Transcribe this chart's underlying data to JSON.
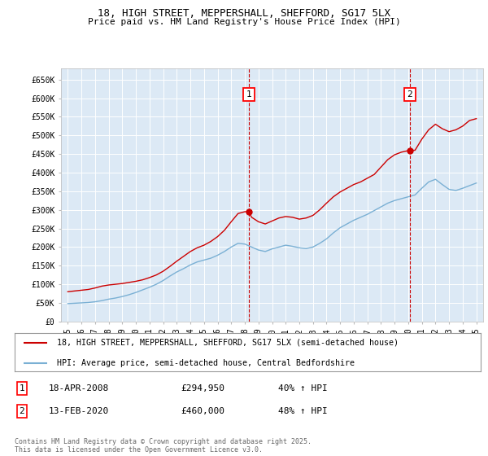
{
  "title_line1": "18, HIGH STREET, MEPPERSHALL, SHEFFORD, SG17 5LX",
  "title_line2": "Price paid vs. HM Land Registry's House Price Index (HPI)",
  "background_color": "#dce9f5",
  "plot_bg_color": "#dce9f5",
  "red_line_color": "#cc0000",
  "blue_line_color": "#7ab0d4",
  "grid_color": "#ffffff",
  "annotation1": {
    "label": "1",
    "date": "18-APR-2008",
    "price": 294950,
    "hpi": "40% ↑ HPI",
    "x_year": 2008.29
  },
  "annotation2": {
    "label": "2",
    "date": "13-FEB-2020",
    "price": 460000,
    "hpi": "48% ↑ HPI",
    "x_year": 2020.12
  },
  "legend_line1": "18, HIGH STREET, MEPPERSHALL, SHEFFORD, SG17 5LX (semi-detached house)",
  "legend_line2": "HPI: Average price, semi-detached house, Central Bedfordshire",
  "footer": "Contains HM Land Registry data © Crown copyright and database right 2025.\nThis data is licensed under the Open Government Licence v3.0.",
  "ylim": [
    0,
    680000
  ],
  "yticks": [
    0,
    50000,
    100000,
    150000,
    200000,
    250000,
    300000,
    350000,
    400000,
    450000,
    500000,
    550000,
    600000,
    650000
  ],
  "xlim_start": 1994.5,
  "xlim_end": 2025.5,
  "red_x": [
    1995.0,
    1995.5,
    1996.0,
    1996.5,
    1997.0,
    1997.5,
    1998.0,
    1998.5,
    1999.0,
    1999.5,
    2000.0,
    2000.5,
    2001.0,
    2001.5,
    2002.0,
    2002.5,
    2003.0,
    2003.5,
    2004.0,
    2004.5,
    2005.0,
    2005.5,
    2006.0,
    2006.5,
    2007.0,
    2007.5,
    2008.0,
    2008.29,
    2008.5,
    2009.0,
    2009.5,
    2010.0,
    2010.5,
    2011.0,
    2011.5,
    2012.0,
    2012.5,
    2013.0,
    2013.5,
    2014.0,
    2014.5,
    2015.0,
    2015.5,
    2016.0,
    2016.5,
    2017.0,
    2017.5,
    2018.0,
    2018.5,
    2019.0,
    2019.5,
    2020.12,
    2020.5,
    2021.0,
    2021.5,
    2022.0,
    2022.5,
    2023.0,
    2023.5,
    2024.0,
    2024.5,
    2025.0
  ],
  "red_y": [
    80000,
    82000,
    84000,
    86000,
    90000,
    95000,
    98000,
    100000,
    102000,
    105000,
    108000,
    112000,
    118000,
    125000,
    135000,
    148000,
    162000,
    175000,
    188000,
    198000,
    205000,
    215000,
    228000,
    245000,
    268000,
    290000,
    294950,
    294950,
    280000,
    268000,
    262000,
    270000,
    278000,
    282000,
    280000,
    275000,
    278000,
    285000,
    300000,
    318000,
    335000,
    348000,
    358000,
    368000,
    375000,
    385000,
    395000,
    415000,
    435000,
    448000,
    455000,
    460000,
    460000,
    490000,
    515000,
    530000,
    518000,
    510000,
    515000,
    525000,
    540000,
    545000
  ],
  "blue_x": [
    1995.0,
    1995.5,
    1996.0,
    1996.5,
    1997.0,
    1997.5,
    1998.0,
    1998.5,
    1999.0,
    1999.5,
    2000.0,
    2000.5,
    2001.0,
    2001.5,
    2002.0,
    2002.5,
    2003.0,
    2003.5,
    2004.0,
    2004.5,
    2005.0,
    2005.5,
    2006.0,
    2006.5,
    2007.0,
    2007.5,
    2008.0,
    2008.5,
    2009.0,
    2009.5,
    2010.0,
    2010.5,
    2011.0,
    2011.5,
    2012.0,
    2012.5,
    2013.0,
    2013.5,
    2014.0,
    2014.5,
    2015.0,
    2015.5,
    2016.0,
    2016.5,
    2017.0,
    2017.5,
    2018.0,
    2018.5,
    2019.0,
    2019.5,
    2020.0,
    2020.5,
    2021.0,
    2021.5,
    2022.0,
    2022.5,
    2023.0,
    2023.5,
    2024.0,
    2024.5,
    2025.0
  ],
  "blue_y": [
    48000,
    49000,
    50000,
    51000,
    53000,
    56000,
    60000,
    63000,
    67000,
    72000,
    78000,
    85000,
    92000,
    100000,
    110000,
    122000,
    133000,
    142000,
    152000,
    160000,
    165000,
    170000,
    178000,
    188000,
    200000,
    210000,
    208000,
    200000,
    192000,
    188000,
    195000,
    200000,
    205000,
    202000,
    198000,
    196000,
    200000,
    210000,
    222000,
    238000,
    252000,
    262000,
    272000,
    280000,
    288000,
    298000,
    308000,
    318000,
    325000,
    330000,
    335000,
    340000,
    358000,
    375000,
    382000,
    368000,
    355000,
    352000,
    358000,
    365000,
    372000
  ]
}
